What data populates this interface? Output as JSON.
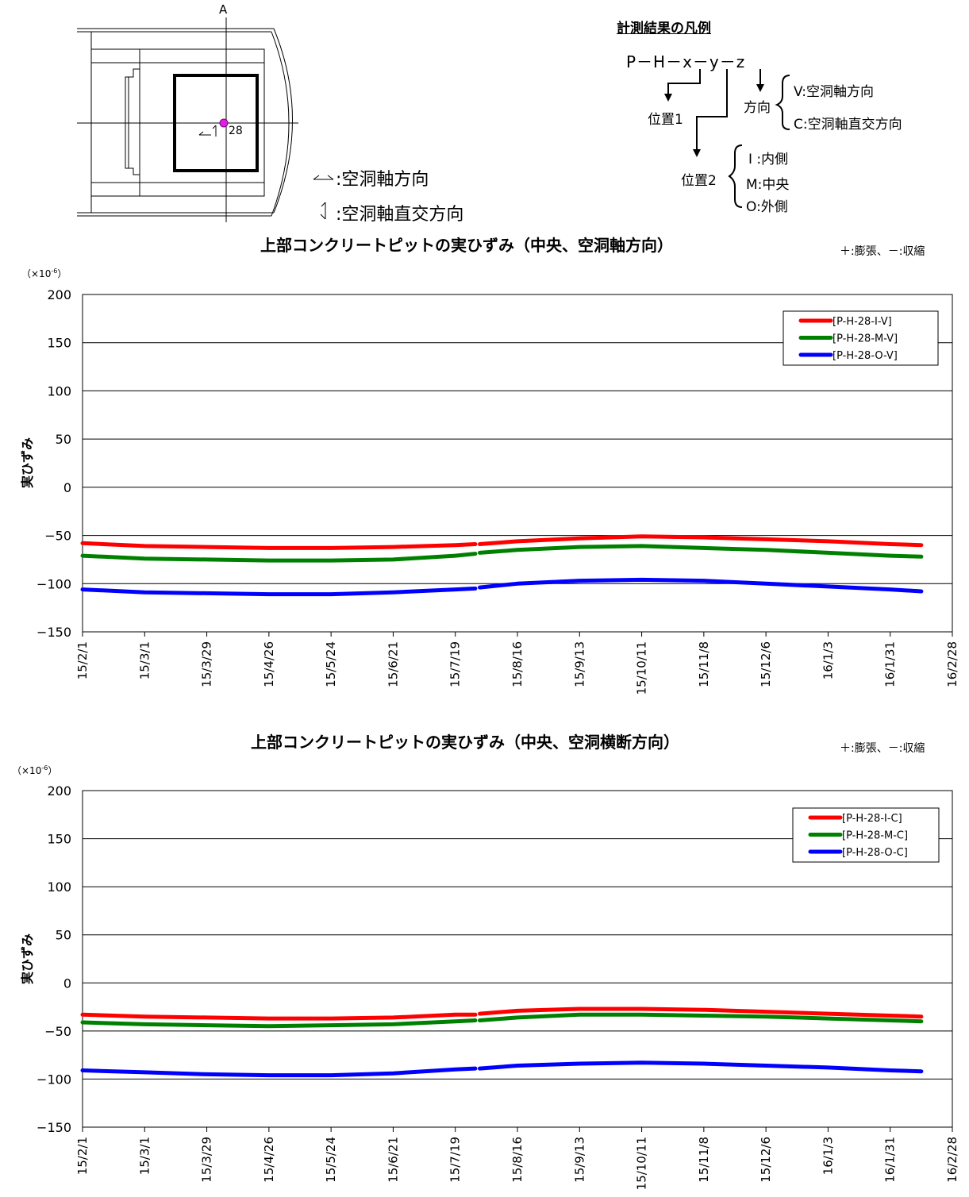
{
  "diagram": {
    "section_mark": "A",
    "gauge_label": "28",
    "axial_dir_text": ":空洞軸方向",
    "cross_dir_text": ":空洞軸直交方向"
  },
  "legend_explainer": {
    "title": "計測結果の凡例",
    "code": "P－H－x－y－z",
    "pos1": "位置1",
    "pos2": "位置2",
    "direction": "方向",
    "dir_v": "V:空洞軸方向",
    "dir_c": "C:空洞軸直交方向",
    "pos_i": "I :内側",
    "pos_m": "M:中央",
    "pos_o": "O:外側"
  },
  "charts_text": {
    "unit_prefix": "（×10",
    "unit_exp": "-6",
    "unit_suffix": "）",
    "sign_note": "＋:膨張、－:収縮"
  },
  "chart_data": [
    {
      "type": "line",
      "title": "上部コンクリートピットの実ひずみ（中央、空洞軸方向）",
      "ylabel": "実ひずみ",
      "xlabel": "",
      "ylim": [
        -150,
        200
      ],
      "yticks": [
        -150,
        -100,
        -50,
        0,
        50,
        100,
        150,
        200
      ],
      "x_ticks": [
        "15/2/1",
        "15/3/1",
        "15/3/29",
        "15/4/26",
        "15/5/24",
        "15/6/21",
        "15/7/19",
        "15/8/16",
        "15/9/13",
        "15/10/11",
        "15/11/8",
        "15/12/6",
        "16/1/3",
        "16/1/31",
        "16/2/28"
      ],
      "xlim": [
        "15/2/1",
        "16/2/28"
      ],
      "grid": "horizontal",
      "legend_position": "top-right",
      "series": [
        {
          "name": "[P-H-28-I-V]",
          "color": "#ff0000",
          "points": [
            [
              "15/2/1",
              -58
            ],
            [
              "15/3/1",
              -61
            ],
            [
              "15/3/29",
              -62
            ],
            [
              "15/4/26",
              -63
            ],
            [
              "15/5/24",
              -63
            ],
            [
              "15/6/21",
              -62
            ],
            [
              "15/7/19",
              -60
            ],
            [
              "15/7/28",
              -59
            ],
            [
              "15/7/30",
              -59
            ],
            [
              "15/8/16",
              -56
            ],
            [
              "15/9/13",
              -53
            ],
            [
              "15/10/11",
              -51
            ],
            [
              "15/11/8",
              -52
            ],
            [
              "15/12/6",
              -54
            ],
            [
              "16/1/3",
              -56
            ],
            [
              "16/1/31",
              -59
            ],
            [
              "16/2/14",
              -60
            ]
          ]
        },
        {
          "name": "[P-H-28-M-V]",
          "color": "#008000",
          "points": [
            [
              "15/2/1",
              -71
            ],
            [
              "15/3/1",
              -74
            ],
            [
              "15/3/29",
              -75
            ],
            [
              "15/4/26",
              -76
            ],
            [
              "15/5/24",
              -76
            ],
            [
              "15/6/21",
              -75
            ],
            [
              "15/7/19",
              -71
            ],
            [
              "15/7/28",
              -69
            ],
            [
              "15/7/30",
              -68
            ],
            [
              "15/8/16",
              -65
            ],
            [
              "15/9/13",
              -62
            ],
            [
              "15/10/11",
              -61
            ],
            [
              "15/11/8",
              -63
            ],
            [
              "15/12/6",
              -65
            ],
            [
              "16/1/3",
              -68
            ],
            [
              "16/1/31",
              -71
            ],
            [
              "16/2/14",
              -72
            ]
          ]
        },
        {
          "name": "[P-H-28-O-V]",
          "color": "#0000ff",
          "points": [
            [
              "15/2/1",
              -106
            ],
            [
              "15/3/1",
              -109
            ],
            [
              "15/3/29",
              -110
            ],
            [
              "15/4/26",
              -111
            ],
            [
              "15/5/24",
              -111
            ],
            [
              "15/6/21",
              -109
            ],
            [
              "15/7/19",
              -106
            ],
            [
              "15/7/28",
              -105
            ],
            [
              "15/7/30",
              -104
            ],
            [
              "15/8/16",
              -100
            ],
            [
              "15/9/13",
              -97
            ],
            [
              "15/10/11",
              -96
            ],
            [
              "15/11/8",
              -97
            ],
            [
              "15/12/6",
              -100
            ],
            [
              "16/1/3",
              -103
            ],
            [
              "16/1/31",
              -106
            ],
            [
              "16/2/14",
              -108
            ]
          ]
        }
      ]
    },
    {
      "type": "line",
      "title": "上部コンクリートピットの実ひずみ（中央、空洞横断方向）",
      "ylabel": "実ひずみ",
      "xlabel": "",
      "ylim": [
        -150,
        200
      ],
      "yticks": [
        -150,
        -100,
        -50,
        0,
        50,
        100,
        150,
        200
      ],
      "x_ticks": [
        "15/2/1",
        "15/3/1",
        "15/3/29",
        "15/4/26",
        "15/5/24",
        "15/6/21",
        "15/7/19",
        "15/8/16",
        "15/9/13",
        "15/10/11",
        "15/11/8",
        "15/12/6",
        "16/1/3",
        "16/1/31",
        "16/2/28"
      ],
      "xlim": [
        "15/2/1",
        "16/2/28"
      ],
      "grid": "horizontal",
      "legend_position": "top-right",
      "series": [
        {
          "name": "[P-H-28-I-C]",
          "color": "#ff0000",
          "points": [
            [
              "15/2/1",
              -33
            ],
            [
              "15/3/1",
              -35
            ],
            [
              "15/3/29",
              -36
            ],
            [
              "15/4/26",
              -37
            ],
            [
              "15/5/24",
              -37
            ],
            [
              "15/6/21",
              -36
            ],
            [
              "15/7/19",
              -33
            ],
            [
              "15/7/28",
              -33
            ],
            [
              "15/7/30",
              -32
            ],
            [
              "15/8/16",
              -29
            ],
            [
              "15/9/13",
              -27
            ],
            [
              "15/10/11",
              -27
            ],
            [
              "15/11/8",
              -28
            ],
            [
              "15/12/6",
              -30
            ],
            [
              "16/1/3",
              -32
            ],
            [
              "16/1/31",
              -34
            ],
            [
              "16/2/14",
              -35
            ]
          ]
        },
        {
          "name": "[P-H-28-M-C]",
          "color": "#008000",
          "points": [
            [
              "15/2/1",
              -41
            ],
            [
              "15/3/1",
              -43
            ],
            [
              "15/3/29",
              -44
            ],
            [
              "15/4/26",
              -45
            ],
            [
              "15/5/24",
              -44
            ],
            [
              "15/6/21",
              -43
            ],
            [
              "15/7/19",
              -40
            ],
            [
              "15/7/28",
              -39
            ],
            [
              "15/7/30",
              -39
            ],
            [
              "15/8/16",
              -36
            ],
            [
              "15/9/13",
              -33
            ],
            [
              "15/10/11",
              -33
            ],
            [
              "15/11/8",
              -34
            ],
            [
              "15/12/6",
              -35
            ],
            [
              "16/1/3",
              -37
            ],
            [
              "16/1/31",
              -39
            ],
            [
              "16/2/14",
              -40
            ]
          ]
        },
        {
          "name": "[P-H-28-O-C]",
          "color": "#0000ff",
          "points": [
            [
              "15/2/1",
              -91
            ],
            [
              "15/3/1",
              -93
            ],
            [
              "15/3/29",
              -95
            ],
            [
              "15/4/26",
              -96
            ],
            [
              "15/5/24",
              -96
            ],
            [
              "15/6/21",
              -94
            ],
            [
              "15/7/19",
              -90
            ],
            [
              "15/7/28",
              -89
            ],
            [
              "15/7/30",
              -89
            ],
            [
              "15/8/16",
              -86
            ],
            [
              "15/9/13",
              -84
            ],
            [
              "15/10/11",
              -83
            ],
            [
              "15/11/8",
              -84
            ],
            [
              "15/12/6",
              -86
            ],
            [
              "16/1/3",
              -88
            ],
            [
              "16/1/31",
              -91
            ],
            [
              "16/2/14",
              -92
            ]
          ]
        }
      ]
    }
  ]
}
